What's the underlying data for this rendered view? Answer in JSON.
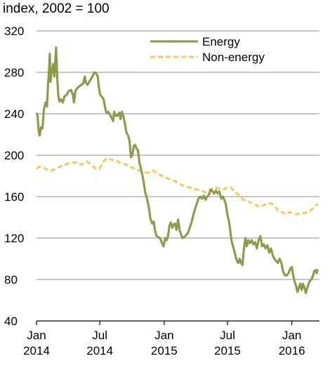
{
  "chart_data": {
    "type": "line",
    "unit_label": "index, 2002 = 100",
    "ylim": [
      40,
      320
    ],
    "yticks": [
      40,
      80,
      120,
      160,
      200,
      240,
      280,
      320
    ],
    "grid": true,
    "legend_placement": "top-right",
    "xlim": [
      "2014-01-01",
      "2016-03-20"
    ],
    "xticks": [
      {
        "date": "2014-01-01",
        "label": [
          "Jan",
          "2014"
        ]
      },
      {
        "date": "2014-07-01",
        "label": [
          "Jul",
          "2014"
        ]
      },
      {
        "date": "2015-01-01",
        "label": [
          "Jan",
          "2015"
        ]
      },
      {
        "date": "2015-07-01",
        "label": [
          "Jul",
          "2015"
        ]
      },
      {
        "date": "2016-01-01",
        "label": [
          "Jan",
          "2016"
        ]
      }
    ],
    "series": [
      {
        "name": "Energy",
        "color": "#8f9a4f",
        "dash": false,
        "points": [
          [
            "2014-01-01",
            241
          ],
          [
            "2014-01-04",
            238
          ],
          [
            "2014-01-07",
            224
          ],
          [
            "2014-01-10",
            219
          ],
          [
            "2014-01-14",
            227
          ],
          [
            "2014-01-18",
            226
          ],
          [
            "2014-01-22",
            244
          ],
          [
            "2014-01-27",
            251
          ],
          [
            "2014-01-31",
            247
          ],
          [
            "2014-02-03",
            268
          ],
          [
            "2014-02-06",
            283
          ],
          [
            "2014-02-08",
            298
          ],
          [
            "2014-02-10",
            271
          ],
          [
            "2014-02-14",
            282
          ],
          [
            "2014-02-18",
            288
          ],
          [
            "2014-02-21",
            276
          ],
          [
            "2014-02-24",
            292
          ],
          [
            "2014-02-26",
            304
          ],
          [
            "2014-03-01",
            276
          ],
          [
            "2014-03-04",
            259
          ],
          [
            "2014-03-07",
            252
          ],
          [
            "2014-03-12",
            254
          ],
          [
            "2014-03-17",
            251
          ],
          [
            "2014-03-22",
            257
          ],
          [
            "2014-03-28",
            258
          ],
          [
            "2014-04-03",
            262
          ],
          [
            "2014-04-10",
            263
          ],
          [
            "2014-04-15",
            258
          ],
          [
            "2014-04-18",
            251
          ],
          [
            "2014-04-22",
            262
          ],
          [
            "2014-04-28",
            265
          ],
          [
            "2014-05-05",
            267
          ],
          [
            "2014-05-10",
            268
          ],
          [
            "2014-05-15",
            270
          ],
          [
            "2014-05-19",
            276
          ],
          [
            "2014-05-22",
            270
          ],
          [
            "2014-05-27",
            268
          ],
          [
            "2014-06-03",
            272
          ],
          [
            "2014-06-10",
            276
          ],
          [
            "2014-06-15",
            280
          ],
          [
            "2014-06-20",
            279
          ],
          [
            "2014-06-25",
            276
          ],
          [
            "2014-06-28",
            266
          ],
          [
            "2014-07-02",
            258
          ],
          [
            "2014-07-08",
            256
          ],
          [
            "2014-07-12",
            254
          ],
          [
            "2014-07-16",
            246
          ],
          [
            "2014-07-20",
            241
          ],
          [
            "2014-07-25",
            242
          ],
          [
            "2014-07-30",
            239
          ],
          [
            "2014-08-04",
            236
          ],
          [
            "2014-08-08",
            233
          ],
          [
            "2014-08-11",
            242
          ],
          [
            "2014-08-15",
            238
          ],
          [
            "2014-08-20",
            238
          ],
          [
            "2014-08-25",
            241
          ],
          [
            "2014-08-29",
            235
          ],
          [
            "2014-09-02",
            242
          ],
          [
            "2014-09-06",
            238
          ],
          [
            "2014-09-10",
            232
          ],
          [
            "2014-09-15",
            222
          ],
          [
            "2014-09-20",
            219
          ],
          [
            "2014-09-24",
            214
          ],
          [
            "2014-09-28",
            198
          ],
          [
            "2014-10-02",
            200
          ],
          [
            "2014-10-06",
            209
          ],
          [
            "2014-10-10",
            210
          ],
          [
            "2014-10-14",
            206
          ],
          [
            "2014-10-18",
            205
          ],
          [
            "2014-10-22",
            193
          ],
          [
            "2014-10-26",
            188
          ],
          [
            "2014-10-30",
            182
          ],
          [
            "2014-11-03",
            175
          ],
          [
            "2014-11-08",
            164
          ],
          [
            "2014-11-13",
            158
          ],
          [
            "2014-11-18",
            150
          ],
          [
            "2014-11-23",
            138
          ],
          [
            "2014-11-28",
            134
          ],
          [
            "2014-12-02",
            136
          ],
          [
            "2014-12-06",
            127
          ],
          [
            "2014-12-10",
            122
          ],
          [
            "2014-12-15",
            121
          ],
          [
            "2014-12-20",
            120
          ],
          [
            "2014-12-25",
            116
          ],
          [
            "2014-12-30",
            112
          ],
          [
            "2015-01-04",
            120
          ],
          [
            "2015-01-08",
            118
          ],
          [
            "2015-01-12",
            122
          ],
          [
            "2015-01-16",
            132
          ],
          [
            "2015-01-20",
            135
          ],
          [
            "2015-01-24",
            130
          ],
          [
            "2015-01-28",
            133
          ],
          [
            "2015-02-01",
            134
          ],
          [
            "2015-02-05",
            128
          ],
          [
            "2015-02-10",
            138
          ],
          [
            "2015-02-14",
            128
          ],
          [
            "2015-02-18",
            124
          ],
          [
            "2015-02-22",
            120
          ],
          [
            "2015-02-27",
            121
          ],
          [
            "2015-03-05",
            123
          ],
          [
            "2015-03-10",
            125
          ],
          [
            "2015-03-15",
            130
          ],
          [
            "2015-03-20",
            135
          ],
          [
            "2015-03-25",
            142
          ],
          [
            "2015-03-30",
            148
          ],
          [
            "2015-04-04",
            153
          ],
          [
            "2015-04-09",
            158
          ],
          [
            "2015-04-14",
            160
          ],
          [
            "2015-04-19",
            158
          ],
          [
            "2015-04-24",
            161
          ],
          [
            "2015-04-29",
            157
          ],
          [
            "2015-05-04",
            160
          ],
          [
            "2015-05-09",
            162
          ],
          [
            "2015-05-14",
            167
          ],
          [
            "2015-05-19",
            165
          ],
          [
            "2015-05-24",
            163
          ],
          [
            "2015-05-29",
            166
          ],
          [
            "2015-06-03",
            163
          ],
          [
            "2015-06-08",
            165
          ],
          [
            "2015-06-13",
            158
          ],
          [
            "2015-06-18",
            160
          ],
          [
            "2015-06-22",
            157
          ],
          [
            "2015-06-26",
            153
          ],
          [
            "2015-06-30",
            144
          ],
          [
            "2015-07-04",
            138
          ],
          [
            "2015-07-08",
            130
          ],
          [
            "2015-07-12",
            118
          ],
          [
            "2015-07-16",
            113
          ],
          [
            "2015-07-20",
            108
          ],
          [
            "2015-07-24",
            103
          ],
          [
            "2015-07-28",
            98
          ],
          [
            "2015-08-01",
            96
          ],
          [
            "2015-08-05",
            100
          ],
          [
            "2015-08-09",
            96
          ],
          [
            "2015-08-13",
            94
          ],
          [
            "2015-08-17",
            110
          ],
          [
            "2015-08-21",
            120
          ],
          [
            "2015-08-25",
            112
          ],
          [
            "2015-08-29",
            118
          ],
          [
            "2015-09-03",
            115
          ],
          [
            "2015-09-08",
            118
          ],
          [
            "2015-09-13",
            114
          ],
          [
            "2015-09-18",
            116
          ],
          [
            "2015-09-23",
            110
          ],
          [
            "2015-09-28",
            118
          ],
          [
            "2015-10-03",
            122
          ],
          [
            "2015-10-08",
            112
          ],
          [
            "2015-10-13",
            114
          ],
          [
            "2015-10-18",
            110
          ],
          [
            "2015-10-23",
            113
          ],
          [
            "2015-10-28",
            106
          ],
          [
            "2015-11-02",
            110
          ],
          [
            "2015-11-07",
            104
          ],
          [
            "2015-11-12",
            100
          ],
          [
            "2015-11-17",
            98
          ],
          [
            "2015-11-22",
            96
          ],
          [
            "2015-11-27",
            100
          ],
          [
            "2015-12-02",
            96
          ],
          [
            "2015-12-07",
            88
          ],
          [
            "2015-12-12",
            84
          ],
          [
            "2015-12-17",
            84
          ],
          [
            "2015-12-22",
            86
          ],
          [
            "2015-12-27",
            90
          ],
          [
            "2016-01-01",
            92
          ],
          [
            "2016-01-05",
            84
          ],
          [
            "2016-01-09",
            78
          ],
          [
            "2016-01-13",
            74
          ],
          [
            "2016-01-17",
            68
          ],
          [
            "2016-01-21",
            72
          ],
          [
            "2016-01-25",
            76
          ],
          [
            "2016-01-29",
            70
          ],
          [
            "2016-02-02",
            76
          ],
          [
            "2016-02-06",
            72
          ],
          [
            "2016-02-10",
            67
          ],
          [
            "2016-02-14",
            72
          ],
          [
            "2016-02-18",
            76
          ],
          [
            "2016-02-22",
            79
          ],
          [
            "2016-02-26",
            80
          ],
          [
            "2016-03-01",
            83
          ],
          [
            "2016-03-05",
            88
          ],
          [
            "2016-03-09",
            89
          ],
          [
            "2016-03-12",
            86
          ],
          [
            "2016-03-15",
            90
          ]
        ]
      },
      {
        "name": "Non-energy",
        "color": "#f7c96b",
        "dash": true,
        "points": [
          [
            "2014-01-01",
            187
          ],
          [
            "2014-01-10",
            189
          ],
          [
            "2014-01-20",
            188
          ],
          [
            "2014-02-01",
            186
          ],
          [
            "2014-02-12",
            185
          ],
          [
            "2014-02-25",
            187
          ],
          [
            "2014-03-10",
            189
          ],
          [
            "2014-03-25",
            191
          ],
          [
            "2014-04-10",
            193
          ],
          [
            "2014-04-25",
            193
          ],
          [
            "2014-05-10",
            191
          ],
          [
            "2014-05-25",
            194
          ],
          [
            "2014-06-05",
            191
          ],
          [
            "2014-06-20",
            187
          ],
          [
            "2014-06-30",
            187
          ],
          [
            "2014-07-10",
            193
          ],
          [
            "2014-07-20",
            197
          ],
          [
            "2014-08-01",
            196
          ],
          [
            "2014-08-15",
            195
          ],
          [
            "2014-09-01",
            192
          ],
          [
            "2014-09-15",
            191
          ],
          [
            "2014-10-01",
            188
          ],
          [
            "2014-10-15",
            186
          ],
          [
            "2014-11-01",
            184
          ],
          [
            "2014-11-15",
            183
          ],
          [
            "2014-12-01",
            185
          ],
          [
            "2014-12-15",
            182
          ],
          [
            "2015-01-01",
            179
          ],
          [
            "2015-01-15",
            177
          ],
          [
            "2015-02-01",
            175
          ],
          [
            "2015-02-15",
            172
          ],
          [
            "2015-03-01",
            170
          ],
          [
            "2015-03-15",
            169
          ],
          [
            "2015-04-01",
            167
          ],
          [
            "2015-04-15",
            166
          ],
          [
            "2015-05-01",
            164
          ],
          [
            "2015-05-15",
            167
          ],
          [
            "2015-05-25",
            169
          ],
          [
            "2015-06-05",
            168
          ],
          [
            "2015-06-20",
            167
          ],
          [
            "2015-07-01",
            169
          ],
          [
            "2015-07-10",
            169
          ],
          [
            "2015-07-20",
            165
          ],
          [
            "2015-08-01",
            162
          ],
          [
            "2015-08-15",
            157
          ],
          [
            "2015-09-01",
            155
          ],
          [
            "2015-09-15",
            153
          ],
          [
            "2015-10-01",
            150
          ],
          [
            "2015-10-15",
            152
          ],
          [
            "2015-10-25",
            154
          ],
          [
            "2015-11-05",
            153
          ],
          [
            "2015-11-15",
            150
          ],
          [
            "2015-11-25",
            146
          ],
          [
            "2015-12-05",
            145
          ],
          [
            "2015-12-15",
            143
          ],
          [
            "2015-12-25",
            145
          ],
          [
            "2016-01-05",
            144
          ],
          [
            "2016-01-15",
            143
          ],
          [
            "2016-01-25",
            144
          ],
          [
            "2016-02-05",
            144
          ],
          [
            "2016-02-15",
            145
          ],
          [
            "2016-02-25",
            147
          ],
          [
            "2016-03-05",
            150
          ],
          [
            "2016-03-15",
            153
          ]
        ]
      }
    ]
  }
}
